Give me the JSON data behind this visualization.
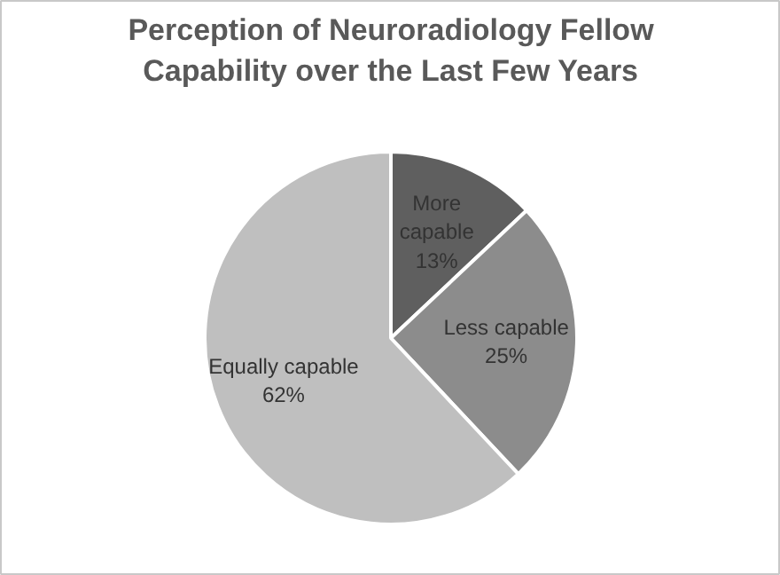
{
  "chart_data": {
    "type": "pie",
    "title": "Perception of Neuroradiology Fellow Capability over the Last Few Years",
    "categories": [
      "More capable",
      "Less capable",
      "Equally capable"
    ],
    "values": [
      13,
      25,
      62
    ],
    "value_labels": [
      "13%",
      "25%",
      "62%"
    ],
    "colors": [
      "#5f5f5f",
      "#8c8c8c",
      "#bfbfbf"
    ]
  }
}
